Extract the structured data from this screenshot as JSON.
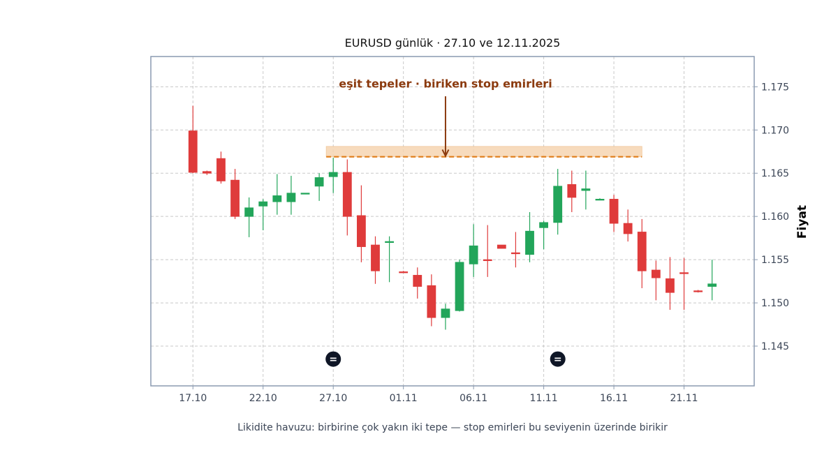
{
  "chart_data": {
    "type": "candlestick",
    "title": "EURUSD günlük · 27.10 ve 12.11.2025",
    "ylabel": "Fiyat",
    "caption": "Likidite havuzu: birbirine çok yakın iki tepe — stop emirleri bu seviyenin üzerinde birikir",
    "ylim": [
      1.1404,
      1.1785
    ],
    "y_ticks": [
      "1.145",
      "1.150",
      "1.155",
      "1.160",
      "1.165",
      "1.170",
      "1.175"
    ],
    "x_ticks": [
      {
        "label": "17.10",
        "index": 0
      },
      {
        "label": "22.10",
        "index": 5
      },
      {
        "label": "27.10",
        "index": 10
      },
      {
        "label": "01.11",
        "index": 15
      },
      {
        "label": "06.11",
        "index": 20
      },
      {
        "label": "11.11",
        "index": 25
      },
      {
        "label": "16.11",
        "index": 30
      },
      {
        "label": "21.11",
        "index": 35
      }
    ],
    "x_range": [
      -3,
      40
    ],
    "grid": true,
    "colors": {
      "up": "#22a55a",
      "down": "#df3b3b",
      "level": "#e07c16",
      "zone": "#f6d5b2",
      "annotation": "#8b3a0e",
      "marker": "#0f1626",
      "frame": "#8a9ab0"
    },
    "candles": [
      {
        "date": "17.10",
        "o": 1.1699,
        "h": 1.1728,
        "l": 1.165,
        "c": 1.1651
      },
      {
        "date": "18.10",
        "o": 1.1652,
        "h": 1.1653,
        "l": 1.1648,
        "c": 1.165
      },
      {
        "date": "19.10",
        "o": 1.1667,
        "h": 1.1675,
        "l": 1.1638,
        "c": 1.1641
      },
      {
        "date": "20.10",
        "o": 1.1642,
        "h": 1.1655,
        "l": 1.1597,
        "c": 1.16
      },
      {
        "date": "21.10",
        "o": 1.16,
        "h": 1.1622,
        "l": 1.1576,
        "c": 1.161
      },
      {
        "date": "22.10",
        "o": 1.1612,
        "h": 1.162,
        "l": 1.1584,
        "c": 1.1617
      },
      {
        "date": "23.10",
        "o": 1.1617,
        "h": 1.1649,
        "l": 1.1602,
        "c": 1.1624
      },
      {
        "date": "24.10",
        "o": 1.1617,
        "h": 1.1647,
        "l": 1.1602,
        "c": 1.1627
      },
      {
        "date": "25.10",
        "o": 1.1626,
        "h": 1.1627,
        "l": 1.1626,
        "c": 1.1627
      },
      {
        "date": "26.10",
        "o": 1.1635,
        "h": 1.165,
        "l": 1.1618,
        "c": 1.1645
      },
      {
        "date": "27.10",
        "o": 1.1646,
        "h": 1.1668,
        "l": 1.1627,
        "c": 1.1651
      },
      {
        "date": "28.10",
        "o": 1.1651,
        "h": 1.1666,
        "l": 1.1578,
        "c": 1.16
      },
      {
        "date": "29.10",
        "o": 1.1601,
        "h": 1.1636,
        "l": 1.1547,
        "c": 1.1565
      },
      {
        "date": "30.10",
        "o": 1.1567,
        "h": 1.1577,
        "l": 1.1522,
        "c": 1.1537
      },
      {
        "date": "31.10",
        "o": 1.1571,
        "h": 1.1577,
        "l": 1.1524,
        "c": 1.1571
      },
      {
        "date": "01.11",
        "o": 1.1536,
        "h": 1.1537,
        "l": 1.1535,
        "c": 1.1535
      },
      {
        "date": "02.11",
        "o": 1.1532,
        "h": 1.1541,
        "l": 1.1505,
        "c": 1.1519
      },
      {
        "date": "03.11",
        "o": 1.152,
        "h": 1.1533,
        "l": 1.1473,
        "c": 1.1483
      },
      {
        "date": "04.11",
        "o": 1.1483,
        "h": 1.1499,
        "l": 1.1469,
        "c": 1.1493
      },
      {
        "date": "05.11",
        "o": 1.1491,
        "h": 1.155,
        "l": 1.149,
        "c": 1.1547
      },
      {
        "date": "06.11",
        "o": 1.1545,
        "h": 1.1591,
        "l": 1.153,
        "c": 1.1566
      },
      {
        "date": "07.11",
        "o": 1.155,
        "h": 1.159,
        "l": 1.153,
        "c": 1.1549
      },
      {
        "date": "08.11",
        "o": 1.1567,
        "h": 1.1567,
        "l": 1.1563,
        "c": 1.1563
      },
      {
        "date": "09.11",
        "o": 1.1558,
        "h": 1.1582,
        "l": 1.1541,
        "c": 1.1557
      },
      {
        "date": "10.11",
        "o": 1.1556,
        "h": 1.1605,
        "l": 1.1547,
        "c": 1.1583
      },
      {
        "date": "11.11",
        "o": 1.1587,
        "h": 1.1595,
        "l": 1.1562,
        "c": 1.1593
      },
      {
        "date": "12.11",
        "o": 1.1593,
        "h": 1.1655,
        "l": 1.1579,
        "c": 1.1635
      },
      {
        "date": "13.11",
        "o": 1.1637,
        "h": 1.1653,
        "l": 1.1605,
        "c": 1.1622
      },
      {
        "date": "14.11",
        "o": 1.163,
        "h": 1.1653,
        "l": 1.1608,
        "c": 1.1632
      },
      {
        "date": "15.11",
        "o": 1.162,
        "h": 1.1621,
        "l": 1.1619,
        "c": 1.162
      },
      {
        "date": "16.11",
        "o": 1.162,
        "h": 1.1625,
        "l": 1.1582,
        "c": 1.1592
      },
      {
        "date": "17.11",
        "o": 1.1592,
        "h": 1.1608,
        "l": 1.1571,
        "c": 1.158
      },
      {
        "date": "18.11",
        "o": 1.1582,
        "h": 1.1597,
        "l": 1.1517,
        "c": 1.1537
      },
      {
        "date": "19.11",
        "o": 1.1538,
        "h": 1.1549,
        "l": 1.1503,
        "c": 1.1529
      },
      {
        "date": "20.11",
        "o": 1.1528,
        "h": 1.1553,
        "l": 1.1492,
        "c": 1.1512
      },
      {
        "date": "21.11",
        "o": 1.1535,
        "h": 1.1552,
        "l": 1.1492,
        "c": 1.1534
      },
      {
        "date": "22.11",
        "o": 1.1514,
        "h": 1.1515,
        "l": 1.1512,
        "c": 1.1513
      },
      {
        "date": "23.11",
        "o": 1.1519,
        "h": 1.155,
        "l": 1.1503,
        "c": 1.1522
      }
    ],
    "liquidity_zone": {
      "level": 1.1669,
      "top": 1.1681,
      "from_index": 9.5,
      "to_index": 32
    },
    "annotation": {
      "text": "eşit tepeler · biriken stop emirleri",
      "text_y": 1.1749,
      "arrow_from_y": 1.1739,
      "arrow_to_y": 1.167,
      "at_index": 18
    },
    "markers": [
      {
        "symbol": "=",
        "index": 10,
        "y": 1.1435
      },
      {
        "symbol": "=",
        "index": 26,
        "y": 1.1435
      }
    ]
  }
}
